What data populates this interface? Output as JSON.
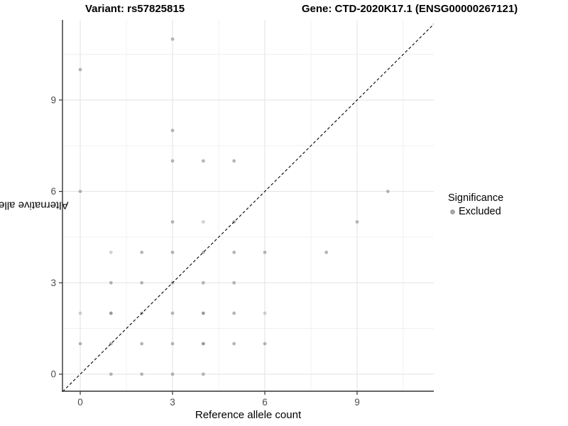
{
  "titles": {
    "variant": "Variant: rs57825815",
    "gene": "Gene: CTD-2020K17.1 (ENSG00000267121)"
  },
  "chart_data": {
    "type": "scatter",
    "xlabel": "Reference allele count",
    "ylabel": "Alternative allele count",
    "x_ticks": [
      0,
      3,
      6,
      9
    ],
    "y_ticks": [
      0,
      3,
      6,
      9
    ],
    "x_minor_ticks": [
      1.5,
      4.5,
      7.5,
      10.5
    ],
    "y_minor_ticks": [
      1.5,
      4.5,
      7.5,
      10.5
    ],
    "xlim": [
      -0.6,
      11.6
    ],
    "ylim": [
      -0.6,
      11.7
    ],
    "grid": "major+minor",
    "identity_line": {
      "style": "dashed",
      "color": "#000000",
      "slope": 1,
      "intercept": 0
    },
    "point_color": "#999999",
    "points": [
      [
        1,
        0
      ],
      [
        2,
        0
      ],
      [
        3,
        0
      ],
      [
        4,
        0
      ],
      [
        0,
        1
      ],
      [
        1,
        1
      ],
      [
        2,
        1
      ],
      [
        3,
        1
      ],
      [
        4,
        1,
        "d"
      ],
      [
        5,
        1
      ],
      [
        6,
        1
      ],
      [
        0,
        2,
        "l"
      ],
      [
        1,
        2,
        "d"
      ],
      [
        2,
        2
      ],
      [
        3,
        2
      ],
      [
        4,
        2,
        "d"
      ],
      [
        5,
        2
      ],
      [
        6,
        2,
        "l"
      ],
      [
        1,
        3
      ],
      [
        2,
        3
      ],
      [
        3,
        3
      ],
      [
        4,
        3
      ],
      [
        5,
        3
      ],
      [
        1,
        4,
        "l"
      ],
      [
        2,
        4
      ],
      [
        3,
        4
      ],
      [
        4,
        4
      ],
      [
        5,
        4
      ],
      [
        6,
        4
      ],
      [
        8,
        4
      ],
      [
        3,
        5
      ],
      [
        4,
        5,
        "l"
      ],
      [
        5,
        5
      ],
      [
        9,
        5
      ],
      [
        0,
        6
      ],
      [
        10,
        6
      ],
      [
        3,
        7
      ],
      [
        4,
        7
      ],
      [
        5,
        7
      ],
      [
        3,
        8
      ],
      [
        0,
        10
      ],
      [
        3,
        11
      ]
    ],
    "legend": {
      "title": "Significance",
      "position": "right",
      "items": [
        {
          "label": "Excluded",
          "color": "#a5a5a5"
        }
      ]
    }
  }
}
